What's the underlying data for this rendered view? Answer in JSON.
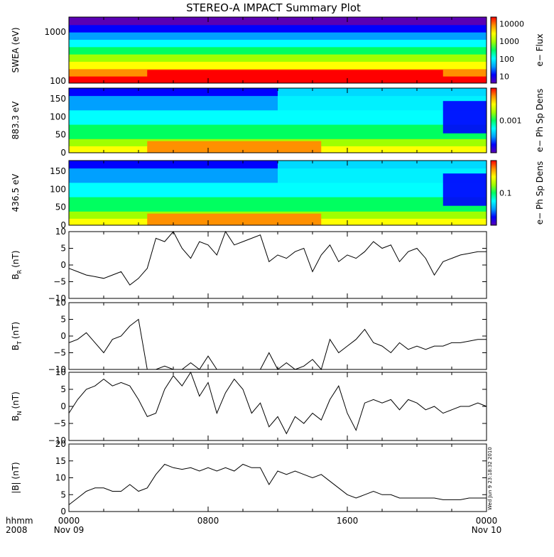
{
  "title": "STEREO-A IMPACT Summary Plot",
  "timestamp": "Wed Jun  9 23:18:32 2010",
  "time_axis": {
    "corner_top": "hhmm",
    "corner_bottom": "2008",
    "ticks": [
      {
        "label": "0000",
        "date": "Nov 09"
      },
      {
        "label": "0800",
        "date": ""
      },
      {
        "label": "1600",
        "date": ""
      },
      {
        "label": "0000",
        "date": "Nov 10"
      }
    ]
  },
  "colors": {
    "spectrogram_scale": [
      "#5a00b4",
      "#0000ff",
      "#00a0ff",
      "#00ffff",
      "#00ff60",
      "#a0ff00",
      "#ffff00",
      "#ff9000",
      "#ff0000"
    ],
    "line": "#000000"
  },
  "chart_data": [
    {
      "type": "heatmap",
      "ylabel": "SWEA (eV)",
      "yscale": "log",
      "ylim": [
        90,
        2000
      ],
      "yticks": [
        "1000",
        "100"
      ],
      "colorbar_label": "e− Flux",
      "colorbar_ticks": [
        "10000",
        "1000",
        "100",
        "10"
      ]
    },
    {
      "type": "heatmap",
      "ylabel": "883.3 eV",
      "ylim": [
        0,
        180
      ],
      "yticks": [
        "150",
        "100",
        "50",
        "0"
      ],
      "colorbar_label": "e− Ph Sp Dens",
      "colorbar_ticks": [
        "0.001"
      ]
    },
    {
      "type": "heatmap",
      "ylabel": "436.5 eV",
      "ylim": [
        0,
        180
      ],
      "yticks": [
        "150",
        "100",
        "50",
        "0"
      ],
      "colorbar_label": "e− Ph Sp Dens",
      "colorbar_ticks": [
        "0.1"
      ]
    },
    {
      "type": "line",
      "ylabel": "B_R (nT)",
      "ylabel_main": "B",
      "ylabel_sub": "R",
      "ylabel_unit": "(nT)",
      "ylim": [
        -10,
        10
      ],
      "yticks": [
        "10",
        "5",
        "0",
        "−5",
        "−10"
      ],
      "x": [
        0,
        0.5,
        1,
        1.5,
        2,
        2.5,
        3,
        3.5,
        4,
        4.5,
        5,
        5.5,
        6,
        6.5,
        7,
        7.5,
        8,
        8.5,
        9,
        9.5,
        10,
        10.5,
        11,
        11.5,
        12,
        12.5,
        13,
        13.5,
        14,
        14.5,
        15,
        15.5,
        16,
        16.5,
        17,
        17.5,
        18,
        18.5,
        19,
        19.5,
        20,
        20.5,
        21,
        21.5,
        22,
        22.5,
        23,
        23.5,
        24
      ],
      "y": [
        -1,
        -2,
        -3,
        -3.5,
        -4,
        -3,
        -2,
        -6,
        -4,
        -1,
        8,
        7,
        10,
        5,
        2,
        7,
        6,
        3,
        10,
        6,
        7,
        8,
        9,
        1,
        3,
        2,
        4,
        5,
        -2,
        3,
        6,
        1,
        3,
        2,
        4,
        7,
        5,
        6,
        1,
        4,
        5,
        2,
        -3,
        1,
        2,
        3,
        3.5,
        4,
        4
      ]
    },
    {
      "type": "line",
      "ylabel": "B_T (nT)",
      "ylabel_main": "B",
      "ylabel_sub": "T",
      "ylabel_unit": "(nT)",
      "ylim": [
        -10,
        10
      ],
      "yticks": [
        "10",
        "5",
        "0",
        "−5",
        "−10"
      ],
      "x": [
        0,
        0.5,
        1,
        1.5,
        2,
        2.5,
        3,
        3.5,
        4,
        4.5,
        5,
        5.5,
        6,
        6.5,
        7,
        7.5,
        8,
        8.5,
        9,
        9.5,
        10,
        10.5,
        11,
        11.5,
        12,
        12.5,
        13,
        13.5,
        14,
        14.5,
        15,
        15.5,
        16,
        16.5,
        17,
        17.5,
        18,
        18.5,
        19,
        19.5,
        20,
        20.5,
        21,
        21.5,
        22,
        22.5,
        23,
        23.5,
        24
      ],
      "y": [
        -2,
        -1,
        1,
        -2,
        -5,
        -1,
        0,
        3,
        5,
        -10,
        -10,
        -9,
        -10,
        -10,
        -8,
        -10,
        -6,
        -10,
        -10,
        -10,
        -10,
        -10,
        -10,
        -5,
        -10,
        -8,
        -10,
        -9,
        -7,
        -10,
        -1,
        -5,
        -3,
        -1,
        2,
        -2,
        -3,
        -5,
        -2,
        -4,
        -3,
        -4,
        -3,
        -3,
        -2,
        -2,
        -1.5,
        -1,
        -1
      ]
    },
    {
      "type": "line",
      "ylabel": "B_N (nT)",
      "ylabel_main": "B",
      "ylabel_sub": "N",
      "ylabel_unit": "(nT)",
      "ylim": [
        -10,
        10
      ],
      "yticks": [
        "10",
        "5",
        "0",
        "−5",
        "−10"
      ],
      "x": [
        0,
        0.5,
        1,
        1.5,
        2,
        2.5,
        3,
        3.5,
        4,
        4.5,
        5,
        5.5,
        6,
        6.5,
        7,
        7.5,
        8,
        8.5,
        9,
        9.5,
        10,
        10.5,
        11,
        11.5,
        12,
        12.5,
        13,
        13.5,
        14,
        14.5,
        15,
        15.5,
        16,
        16.5,
        17,
        17.5,
        18,
        18.5,
        19,
        19.5,
        20,
        20.5,
        21,
        21.5,
        22,
        22.5,
        23,
        23.5,
        24
      ],
      "y": [
        -2,
        2,
        5,
        6,
        8,
        6,
        7,
        6,
        2,
        -3,
        -2,
        5,
        9,
        6,
        10,
        3,
        7,
        -2,
        4,
        8,
        5,
        -2,
        1,
        -6,
        -3,
        -8,
        -3,
        -5,
        -2,
        -4,
        2,
        6,
        -2,
        -7,
        1,
        2,
        1,
        2,
        -1,
        2,
        1,
        -1,
        0,
        -2,
        -1,
        0,
        0,
        1,
        0
      ]
    },
    {
      "type": "line",
      "ylabel": "|B| (nT)",
      "ylim": [
        0,
        20
      ],
      "yticks": [
        "20",
        "15",
        "10",
        "5",
        "0"
      ],
      "x": [
        0,
        0.5,
        1,
        1.5,
        2,
        2.5,
        3,
        3.5,
        4,
        4.5,
        5,
        5.5,
        6,
        6.5,
        7,
        7.5,
        8,
        8.5,
        9,
        9.5,
        10,
        10.5,
        11,
        11.5,
        12,
        12.5,
        13,
        13.5,
        14,
        14.5,
        15,
        15.5,
        16,
        16.5,
        17,
        17.5,
        18,
        18.5,
        19,
        19.5,
        20,
        20.5,
        21,
        21.5,
        22,
        22.5,
        23,
        23.5,
        24
      ],
      "y": [
        2,
        4,
        6,
        7,
        7,
        6,
        6,
        8,
        6,
        7,
        11,
        14,
        13,
        12.5,
        13,
        12,
        13,
        12,
        13,
        12,
        14,
        13,
        13,
        8,
        12,
        11,
        12,
        11,
        10,
        11,
        9,
        7,
        5,
        4,
        5,
        6,
        5,
        5,
        4,
        4,
        4,
        4,
        4,
        3.5,
        3.5,
        3.5,
        4,
        4,
        4
      ]
    }
  ]
}
